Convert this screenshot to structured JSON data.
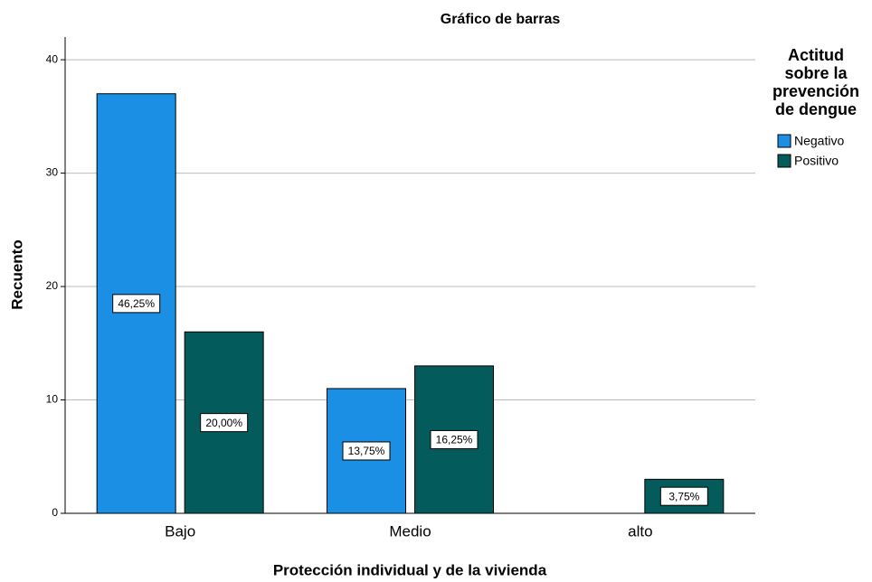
{
  "chart_data": {
    "type": "bar",
    "title": "Gráfico de barras",
    "x_label": "Protección individual y de la vivienda",
    "y_label": "Recuento",
    "categories": [
      "Bajo",
      "Medio",
      "alto"
    ],
    "series": [
      {
        "name": "Negativo",
        "color": "#1a8fe3",
        "values": [
          37,
          11,
          null
        ],
        "labels": [
          "46,25%",
          "13,75%",
          null
        ]
      },
      {
        "name": "Positivo",
        "color": "#045b5b",
        "values": [
          16,
          13,
          3
        ],
        "labels": [
          "20,00%",
          "16,25%",
          "3,75%"
        ]
      }
    ],
    "legend_title": [
      "Actitud",
      "sobre la",
      "prevención",
      "de dengue"
    ],
    "legend": "right",
    "ylim": [
      0,
      42
    ],
    "yticks": [
      0,
      10,
      20,
      30,
      40
    ],
    "grid": true
  }
}
